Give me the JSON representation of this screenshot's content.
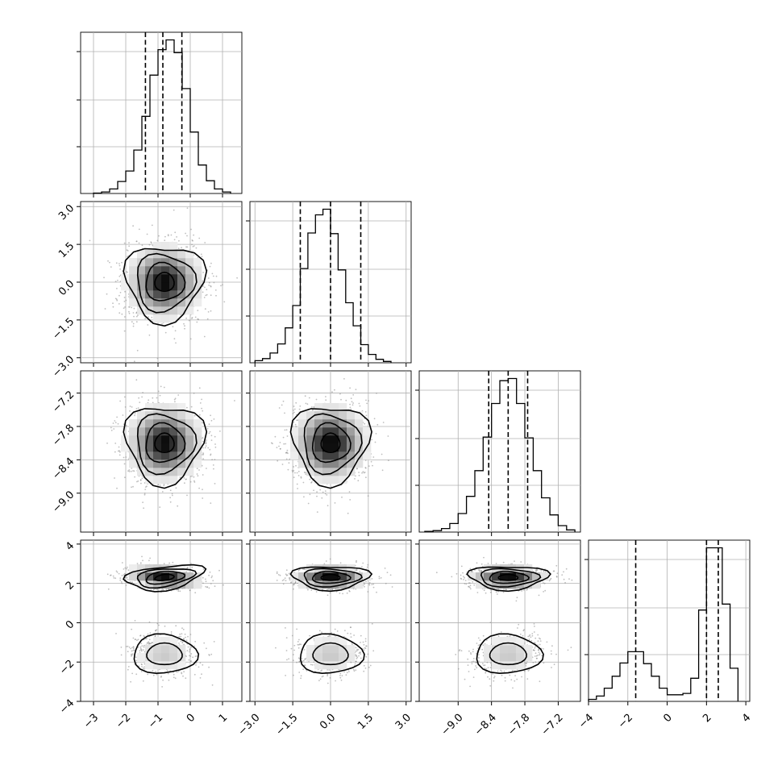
{
  "chart_data": {
    "type": "corner",
    "parameters": 4,
    "grid": true,
    "colors": {
      "line": "#000000",
      "grid": "#b0b0b0",
      "points": "#8a8a8a"
    },
    "axes": [
      {
        "range": [
          -3.4,
          1.6
        ],
        "ticks": [
          -3,
          -2,
          -1,
          0,
          1
        ],
        "tick_labels": [
          "−3",
          "−2",
          "−1",
          "0",
          "1"
        ]
      },
      {
        "range": [
          -3.2,
          3.2
        ],
        "ticks": [
          -3.0,
          -1.5,
          0.0,
          1.5,
          3.0
        ],
        "tick_labels": [
          "−3.0",
          "−1.5",
          "0.0",
          "1.5",
          "3.0"
        ]
      },
      {
        "range": [
          -9.7,
          -6.8
        ],
        "ticks": [
          -9.0,
          -8.4,
          -7.8,
          -7.2
        ],
        "tick_labels": [
          "−9.0",
          "−8.4",
          "−7.8",
          "−7.2"
        ]
      },
      {
        "range": [
          -4.0,
          4.2
        ],
        "ticks": [
          -4,
          -2,
          0,
          2,
          4
        ],
        "tick_labels": [
          "−4",
          "−2",
          "0",
          "2",
          "4"
        ]
      }
    ],
    "histograms": [
      {
        "param": 0,
        "bin_edges": [
          -3.0,
          -2.75,
          -2.5,
          -2.25,
          -2.0,
          -1.75,
          -1.5,
          -1.25,
          -1.0,
          -0.75,
          -0.5,
          -0.25,
          0.0,
          0.25,
          0.5,
          0.75,
          1.0,
          1.25
        ],
        "counts": [
          0.5,
          2,
          6,
          16,
          30,
          58,
          103,
          158,
          192,
          205,
          188,
          140,
          82,
          38,
          17,
          6,
          2
        ],
        "quantiles": [
          -1.39,
          -0.85,
          -0.26
        ]
      },
      {
        "param": 1,
        "bin_edges": [
          -3.0,
          -2.7,
          -2.4,
          -2.1,
          -1.8,
          -1.5,
          -1.2,
          -0.9,
          -0.6,
          -0.3,
          0.0,
          0.3,
          0.6,
          0.9,
          1.2,
          1.5,
          1.8,
          2.1,
          2.4
        ],
        "counts": [
          3,
          6,
          14,
          27,
          50,
          82,
          135,
          186,
          212,
          220,
          185,
          133,
          86,
          53,
          26,
          12,
          5,
          2
        ],
        "quantiles": [
          -1.2,
          0.0,
          1.2
        ]
      },
      {
        "param": 2,
        "bin_edges": [
          -9.6,
          -9.45,
          -9.3,
          -9.15,
          -9.0,
          -8.85,
          -8.7,
          -8.55,
          -8.4,
          -8.25,
          -8.1,
          -7.95,
          -7.8,
          -7.65,
          -7.5,
          -7.35,
          -7.2,
          -7.05,
          -6.9
        ],
        "counts": [
          1,
          2,
          5,
          12,
          26,
          50,
          86,
          133,
          180,
          212,
          215,
          180,
          132,
          86,
          48,
          24,
          9,
          3
        ],
        "quantiles": [
          -8.45,
          -8.1,
          -7.75
        ]
      },
      {
        "param": 3,
        "bin_edges": [
          -4.0,
          -3.6,
          -3.2,
          -2.8,
          -2.4,
          -2.0,
          -1.6,
          -1.2,
          -0.8,
          -0.4,
          0.0,
          0.4,
          0.8,
          1.2,
          1.6,
          2.0,
          2.4,
          2.8,
          3.2,
          3.6
        ],
        "counts": [
          3,
          8,
          20,
          38,
          58,
          75,
          75,
          57,
          38,
          20,
          10,
          10,
          12,
          35,
          138,
          232,
          232,
          147,
          50
        ],
        "quantiles": [
          -1.6,
          2.0,
          2.6
        ]
      }
    ],
    "pairs": [
      {
        "x": 0,
        "y": 1,
        "modes": [
          {
            "mean": [
              -0.8,
              0.0
            ],
            "std": [
              0.6,
              0.75
            ],
            "weight": 1.0,
            "rho": 0.0
          }
        ]
      },
      {
        "x": 0,
        "y": 2,
        "modes": [
          {
            "mean": [
              -0.8,
              -8.1
            ],
            "std": [
              0.6,
              0.35
            ],
            "weight": 1.0,
            "rho": 0.0
          }
        ]
      },
      {
        "x": 1,
        "y": 2,
        "modes": [
          {
            "mean": [
              0.0,
              -8.1
            ],
            "std": [
              0.75,
              0.35
            ],
            "weight": 1.0,
            "rho": 0.0
          }
        ]
      },
      {
        "x": 0,
        "y": 3,
        "modes": [
          {
            "mean": [
              -0.8,
              2.3
            ],
            "std": [
              0.6,
              0.3
            ],
            "weight": 0.65,
            "rho": -0.25
          },
          {
            "mean": [
              -0.8,
              -1.6
            ],
            "std": [
              0.55,
              0.55
            ],
            "weight": 0.35,
            "rho": 0.0
          }
        ]
      },
      {
        "x": 1,
        "y": 3,
        "modes": [
          {
            "mean": [
              0.0,
              2.3
            ],
            "std": [
              0.75,
              0.3
            ],
            "weight": 0.65,
            "rho": 0.0
          },
          {
            "mean": [
              0.0,
              -1.6
            ],
            "std": [
              0.7,
              0.55
            ],
            "weight": 0.35,
            "rho": 0.0
          }
        ]
      },
      {
        "x": 2,
        "y": 3,
        "modes": [
          {
            "mean": [
              -8.1,
              2.3
            ],
            "std": [
              0.35,
              0.3
            ],
            "weight": 0.65,
            "rho": 0.0
          },
          {
            "mean": [
              -8.1,
              -1.6
            ],
            "std": [
              0.33,
              0.55
            ],
            "weight": 0.35,
            "rho": 0.0
          }
        ]
      }
    ]
  }
}
